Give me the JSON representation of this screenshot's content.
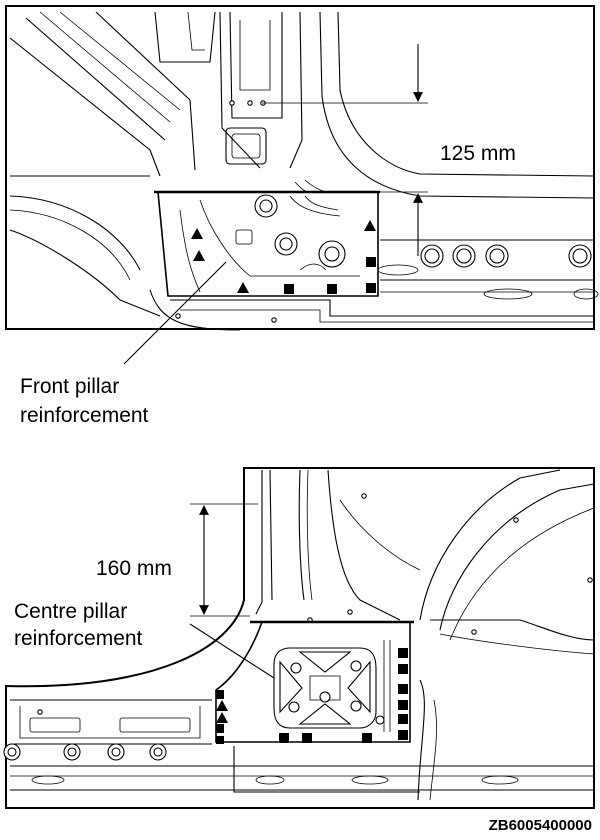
{
  "top_view": {
    "dimension_label": "125 mm",
    "callout_line1": "Front pillar",
    "callout_line2": "reinforcement"
  },
  "bottom_view": {
    "dimension_label": "160 mm",
    "callout_line1": "Centre pillar",
    "callout_line2": "reinforcement"
  },
  "figure_code": "ZB6005400000"
}
